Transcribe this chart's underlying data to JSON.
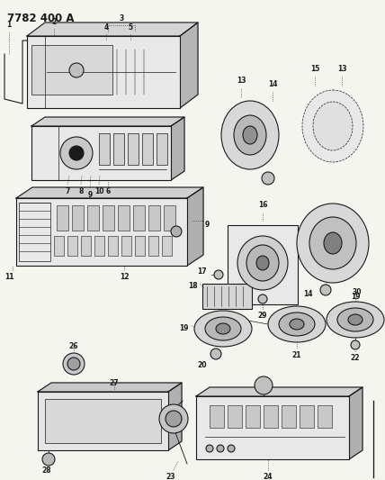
{
  "title": "7782 400 A",
  "bg_color": "#f5f5f0",
  "line_color": "#1a1a1a",
  "gray1": "#c8c8c8",
  "gray2": "#b0b0b0",
  "gray3": "#d8d8d8",
  "gray_light": "#e8e8e8",
  "title_fontsize": 8.5,
  "label_fontsize": 5.5,
  "lw_main": 0.8,
  "lw_detail": 0.5
}
